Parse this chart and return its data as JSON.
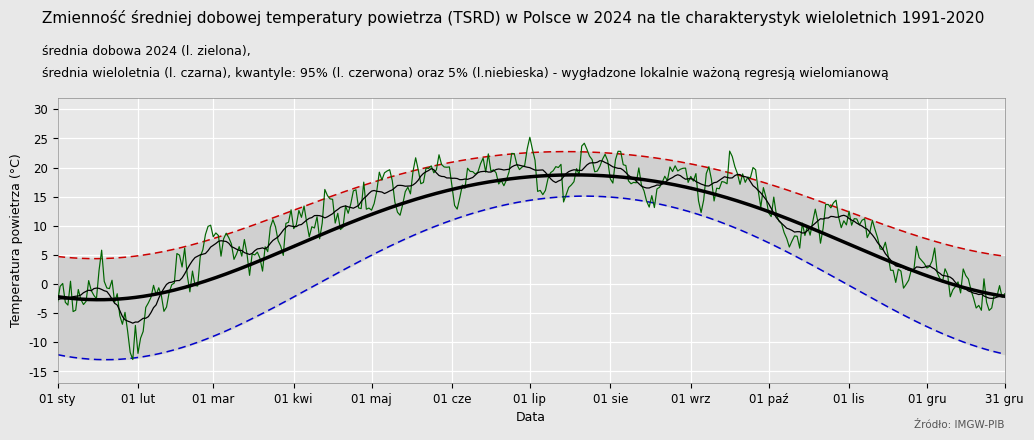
{
  "title": "Zmienność średniej dobowej temperatury powietrza (TSRD) w Polsce w 2024 na tle charakterystyk wieloletnich 1991-2020",
  "subtitle1": "średnia dobowa 2024 (l. zielona),",
  "subtitle2": "średnia wieloletnia (l. czarna), kwantyle: 95% (l. czerwona) oraz 5% (l.niebieska) - wygładzone lokalnie ważoną regresją wielomianową",
  "xlabel": "Data",
  "ylabel": "Temperatura powietrza (°C)",
  "source": "Źródło: IMGW-PIB",
  "xlabels": [
    "01 sty",
    "01 lut",
    "01 mar",
    "01 kwi",
    "01 maj",
    "01 cze",
    "01 lip",
    "01 sie",
    "01 wrz",
    "01 paź",
    "01 lis",
    "01 gru",
    "31 gru"
  ],
  "ylim": [
    -17,
    32
  ],
  "yticks": [
    -15,
    -10,
    -5,
    0,
    5,
    10,
    15,
    20,
    25,
    30
  ],
  "background_color": "#e8e8e8",
  "plot_bg_color": "#e8e8e8",
  "mean_color": "#000000",
  "daily_color": "#006400",
  "q95_color": "#cc0000",
  "q05_color": "#0000cc",
  "shade_color": "#d0d0d0",
  "title_fontsize": 11,
  "subtitle_fontsize": 9,
  "axis_fontsize": 9,
  "tick_fontsize": 8.5
}
